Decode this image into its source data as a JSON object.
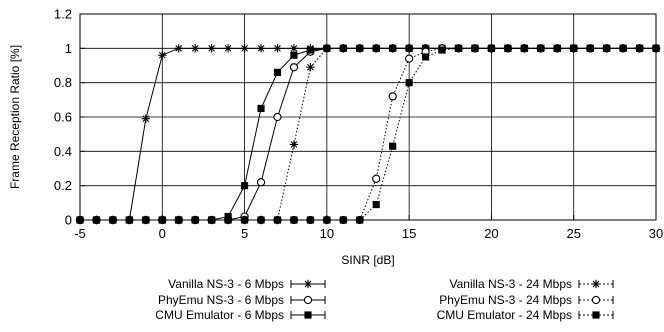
{
  "chart_data": {
    "type": "line",
    "xlabel": "SINR [dB]",
    "ylabel": "Frame Reception Ratio [%]",
    "xlim": [
      -5,
      30
    ],
    "ylim": [
      0,
      1.2
    ],
    "xticks": [
      -5,
      0,
      5,
      10,
      15,
      20,
      25,
      30
    ],
    "yticks": [
      0,
      0.2,
      0.4,
      0.6,
      0.8,
      1,
      1.2
    ],
    "x_tick_labels": [
      "-5",
      "0",
      "5",
      "10",
      "15",
      "20",
      "25",
      "30"
    ],
    "y_tick_labels": [
      "0",
      "0.2",
      "0.4",
      "0.6",
      "0.8",
      "1",
      "1.2"
    ],
    "grid": true,
    "legend": "bottom",
    "series": [
      {
        "name": "Vanilla NS-3 - 6 Mbps",
        "marker": "star",
        "line": "solid",
        "x": [
          -5,
          -4,
          -3,
          -2,
          -1,
          0,
          1,
          2,
          3,
          4,
          5,
          6,
          7,
          8,
          9,
          10,
          11,
          12,
          13,
          14,
          15,
          16,
          17,
          18,
          19,
          20,
          21,
          22,
          23,
          24,
          25,
          26,
          27,
          28,
          29,
          30
        ],
        "y": [
          0,
          0,
          0,
          0,
          0.59,
          0.96,
          1,
          1,
          1,
          1,
          1,
          1,
          1,
          1,
          1,
          1,
          1,
          1,
          1,
          1,
          1,
          1,
          1,
          1,
          1,
          1,
          1,
          1,
          1,
          1,
          1,
          1,
          1,
          1,
          1,
          1
        ]
      },
      {
        "name": "PhyEmu NS-3 - 6 Mbps",
        "marker": "circle",
        "line": "solid",
        "x": [
          -5,
          -4,
          -3,
          -2,
          -1,
          0,
          1,
          2,
          3,
          4,
          5,
          6,
          7,
          8,
          9,
          10,
          11,
          12,
          13,
          14,
          15,
          16,
          17,
          18,
          19,
          20,
          21,
          22,
          23,
          24,
          25,
          26,
          27,
          28,
          29,
          30
        ],
        "y": [
          0,
          0,
          0,
          0,
          0,
          0,
          0,
          0,
          0,
          0,
          0.02,
          0.22,
          0.6,
          0.89,
          0.98,
          1,
          1,
          1,
          1,
          1,
          1,
          1,
          1,
          1,
          1,
          1,
          1,
          1,
          1,
          1,
          1,
          1,
          1,
          1,
          1,
          1
        ]
      },
      {
        "name": "CMU Emulator - 6 Mbps",
        "marker": "filled-square",
        "line": "solid",
        "x": [
          -5,
          -4,
          -3,
          -2,
          -1,
          0,
          1,
          2,
          3,
          4,
          5,
          6,
          7,
          8,
          9,
          10,
          11,
          12,
          13,
          14,
          15,
          16,
          17,
          18,
          19,
          20,
          21,
          22,
          23,
          24,
          25,
          26,
          27,
          28,
          29,
          30
        ],
        "y": [
          0,
          0,
          0,
          0,
          0,
          0,
          0,
          0,
          0,
          0.02,
          0.2,
          0.65,
          0.86,
          0.96,
          0.99,
          1,
          1,
          1,
          1,
          1,
          1,
          1,
          1,
          1,
          1,
          1,
          1,
          1,
          1,
          1,
          1,
          1,
          1,
          1,
          1,
          1
        ]
      },
      {
        "name": "Vanilla NS-3 - 24 Mbps",
        "marker": "star",
        "line": "dotted",
        "x": [
          -5,
          -4,
          -3,
          -2,
          -1,
          0,
          1,
          2,
          3,
          4,
          5,
          6,
          7,
          8,
          9,
          10,
          11,
          12,
          13,
          14,
          15,
          16,
          17,
          18,
          19,
          20,
          21,
          22,
          23,
          24,
          25,
          26,
          27,
          28,
          29,
          30
        ],
        "y": [
          0,
          0,
          0,
          0,
          0,
          0,
          0,
          0,
          0,
          0,
          0,
          0,
          0,
          0.44,
          0.89,
          1,
          1,
          1,
          1,
          1,
          1,
          1,
          1,
          1,
          1,
          1,
          1,
          1,
          1,
          1,
          1,
          1,
          1,
          1,
          1,
          1
        ]
      },
      {
        "name": "PhyEmu NS-3 - 24 Mbps",
        "marker": "circle",
        "line": "dotted",
        "x": [
          -5,
          -4,
          -3,
          -2,
          -1,
          0,
          1,
          2,
          3,
          4,
          5,
          6,
          7,
          8,
          9,
          10,
          11,
          12,
          13,
          14,
          15,
          16,
          17,
          18,
          19,
          20,
          21,
          22,
          23,
          24,
          25,
          26,
          27,
          28,
          29,
          30
        ],
        "y": [
          0,
          0,
          0,
          0,
          0,
          0,
          0,
          0,
          0,
          0,
          0,
          0,
          0,
          0,
          0,
          0,
          0,
          0,
          0.24,
          0.72,
          0.94,
          0.98,
          1,
          1,
          1,
          1,
          1,
          1,
          1,
          1,
          1,
          1,
          1,
          1,
          1,
          1
        ]
      },
      {
        "name": "CMU Emulator - 24 Mbps",
        "marker": "filled-square",
        "line": "dotted",
        "x": [
          -5,
          -4,
          -3,
          -2,
          -1,
          0,
          1,
          2,
          3,
          4,
          5,
          6,
          7,
          8,
          9,
          10,
          11,
          12,
          13,
          14,
          15,
          16,
          17,
          18,
          19,
          20,
          21,
          22,
          23,
          24,
          25,
          26,
          27,
          28,
          29,
          30
        ],
        "y": [
          0,
          0,
          0,
          0,
          0,
          0,
          0,
          0,
          0,
          0,
          0,
          0,
          0,
          0,
          0,
          0,
          0,
          0,
          0.09,
          0.43,
          0.8,
          0.95,
          0.99,
          1,
          1,
          1,
          1,
          1,
          1,
          1,
          1,
          1,
          1,
          1,
          1,
          1
        ]
      }
    ]
  }
}
